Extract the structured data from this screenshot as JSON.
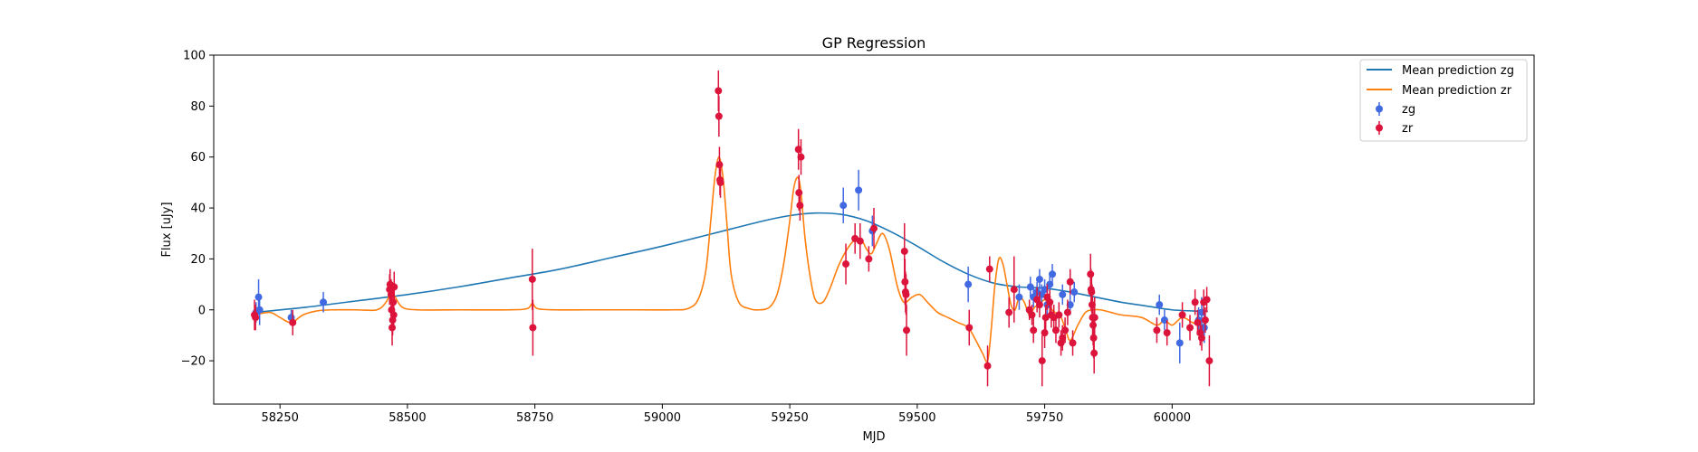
{
  "chart_data": {
    "type": "scatter",
    "title": "GP Regression",
    "xlabel": "MJD",
    "ylabel": "Flux [uJy]",
    "xlim": [
      58120,
      60710
    ],
    "ylim": [
      -37,
      100
    ],
    "xticks": [
      58250,
      58500,
      58750,
      59000,
      59250,
      59500,
      59750,
      60000
    ],
    "yticks": [
      -20,
      0,
      20,
      40,
      60,
      80,
      100
    ],
    "ytick_labels": [
      "−20",
      "0",
      "20",
      "40",
      "60",
      "80",
      "100"
    ],
    "legend_position": "top-right",
    "colors": {
      "zg": "#4169e1",
      "zr": "#dc143c",
      "mean_zg": "#1f77b4",
      "mean_zr": "#ff7f0e"
    },
    "series": [
      {
        "name": "zg",
        "kind": "errorbar",
        "color": "#4169e1",
        "points": [
          [
            58203,
            -1,
            4
          ],
          [
            58208,
            5,
            7
          ],
          [
            58210,
            0,
            6
          ],
          [
            58272,
            -3,
            3
          ],
          [
            58335,
            3,
            4
          ],
          [
            59355,
            41,
            7
          ],
          [
            59385,
            47,
            8
          ],
          [
            59412,
            31,
            6
          ],
          [
            59600,
            10,
            7
          ],
          [
            59700,
            5,
            5
          ],
          [
            59722,
            9,
            4
          ],
          [
            59728,
            5,
            4
          ],
          [
            59735,
            7,
            4
          ],
          [
            59740,
            12,
            4
          ],
          [
            59744,
            6,
            4
          ],
          [
            59750,
            8,
            4
          ],
          [
            59755,
            2,
            4
          ],
          [
            59760,
            10,
            4
          ],
          [
            59765,
            14,
            4
          ],
          [
            59785,
            6,
            4
          ],
          [
            59800,
            2,
            4
          ],
          [
            59808,
            7,
            4
          ],
          [
            59975,
            2,
            4
          ],
          [
            59985,
            -4,
            4
          ],
          [
            60015,
            -13,
            8
          ],
          [
            60052,
            -4,
            5
          ],
          [
            60058,
            -1,
            6
          ],
          [
            60063,
            -7,
            6
          ]
        ]
      },
      {
        "name": "zr",
        "kind": "errorbar",
        "color": "#dc143c",
        "points": [
          [
            58200,
            -2,
            6
          ],
          [
            58202,
            -3,
            5
          ],
          [
            58275,
            -5,
            5
          ],
          [
            58465,
            8,
            6
          ],
          [
            58466,
            10,
            6
          ],
          [
            58468,
            6,
            6
          ],
          [
            58469,
            0,
            6
          ],
          [
            58470,
            -7,
            7
          ],
          [
            58471,
            -4,
            6
          ],
          [
            58472,
            3,
            6
          ],
          [
            58473,
            -2,
            6
          ],
          [
            58474,
            9,
            6
          ],
          [
            58745,
            12,
            12
          ],
          [
            58746,
            -7,
            11
          ],
          [
            59110,
            86,
            8
          ],
          [
            59111,
            76,
            8
          ],
          [
            59112,
            57,
            7
          ],
          [
            59113,
            51,
            6
          ],
          [
            59114,
            50,
            6
          ],
          [
            59267,
            63,
            8
          ],
          [
            59268,
            46,
            7
          ],
          [
            59270,
            41,
            6
          ],
          [
            59272,
            60,
            7
          ],
          [
            59360,
            18,
            8
          ],
          [
            59378,
            28,
            6
          ],
          [
            59388,
            27,
            7
          ],
          [
            59405,
            20,
            5
          ],
          [
            59415,
            32,
            8
          ],
          [
            59475,
            23,
            11
          ],
          [
            59476,
            11,
            9
          ],
          [
            59477,
            7,
            8
          ],
          [
            59478,
            6,
            8
          ],
          [
            59479,
            -8,
            10
          ],
          [
            59602,
            -7,
            7
          ],
          [
            59638,
            -22,
            8
          ],
          [
            59642,
            16,
            5
          ],
          [
            59680,
            -1,
            6
          ],
          [
            59690,
            8,
            13
          ],
          [
            59720,
            0,
            4
          ],
          [
            59725,
            -2,
            4
          ],
          [
            59728,
            -8,
            5
          ],
          [
            59735,
            4,
            5
          ],
          [
            59740,
            2,
            5
          ],
          [
            59745,
            -20,
            10
          ],
          [
            59750,
            -9,
            6
          ],
          [
            59752,
            -3,
            5
          ],
          [
            59755,
            5,
            5
          ],
          [
            59760,
            3,
            5
          ],
          [
            59763,
            -2,
            5
          ],
          [
            59768,
            -3,
            5
          ],
          [
            59772,
            -8,
            5
          ],
          [
            59778,
            -2,
            5
          ],
          [
            59782,
            -13,
            5
          ],
          [
            59785,
            -11,
            5
          ],
          [
            59790,
            -8,
            5
          ],
          [
            59795,
            -1,
            5
          ],
          [
            59800,
            11,
            5
          ],
          [
            59805,
            -13,
            5
          ],
          [
            59840,
            14,
            8
          ],
          [
            59841,
            8,
            8
          ],
          [
            59842,
            7,
            8
          ],
          [
            59843,
            2,
            8
          ],
          [
            59844,
            -3,
            8
          ],
          [
            59845,
            -6,
            8
          ],
          [
            59846,
            -11,
            8
          ],
          [
            59847,
            -17,
            8
          ],
          [
            59848,
            -3,
            8
          ],
          [
            59970,
            -8,
            5
          ],
          [
            59990,
            -9,
            5
          ],
          [
            60020,
            -2,
            5
          ],
          [
            60035,
            -7,
            5
          ],
          [
            60045,
            3,
            5
          ],
          [
            60050,
            -5,
            5
          ],
          [
            60055,
            -9,
            5
          ],
          [
            60058,
            -11,
            5
          ],
          [
            60062,
            3,
            5
          ],
          [
            60065,
            -4,
            5
          ],
          [
            60068,
            4,
            5
          ],
          [
            60073,
            -20,
            10
          ]
        ]
      },
      {
        "name": "Mean prediction zg",
        "kind": "line",
        "color": "#1f77b4",
        "x": [
          58200,
          58300,
          58400,
          58500,
          58600,
          58700,
          58800,
          58900,
          59000,
          59100,
          59200,
          59250,
          59300,
          59350,
          59400,
          59450,
          59500,
          59550,
          59600,
          59650,
          59700,
          59750,
          59800,
          59850,
          59900,
          59950,
          60000,
          60050,
          60070
        ],
        "y": [
          -1,
          1,
          3.5,
          6,
          9,
          12.5,
          16,
          20.5,
          25,
          30,
          35,
          37,
          38,
          37.5,
          35,
          30.5,
          25,
          19,
          14,
          10.5,
          9,
          8.5,
          7,
          5,
          3,
          1.5,
          0,
          -0.5,
          -0.5
        ]
      },
      {
        "name": "Mean prediction zr",
        "kind": "line",
        "color": "#ff7f0e",
        "x": [
          58200,
          58230,
          58250,
          58272,
          58295,
          58320,
          58350,
          58400,
          58440,
          58458,
          58468,
          58476,
          58490,
          58520,
          58600,
          58700,
          58735,
          58745,
          58755,
          58790,
          58850,
          58950,
          59020,
          59050,
          59070,
          59085,
          59095,
          59103,
          59111,
          59119,
          59127,
          59135,
          59150,
          59170,
          59190,
          59210,
          59225,
          59238,
          59250,
          59258,
          59266,
          59272,
          59280,
          59290,
          59300,
          59315,
          59330,
          59345,
          59360,
          59375,
          59390,
          59400,
          59410,
          59420,
          59432,
          59445,
          59460,
          59470,
          59478,
          59490,
          59505,
          59520,
          59540,
          59560,
          59580,
          59600,
          59615,
          59628,
          59638,
          59645,
          59652,
          59660,
          59668,
          59676,
          59684,
          59692,
          59700,
          59710,
          59720,
          59730,
          59740,
          59750,
          59760,
          59770,
          59780,
          59790,
          59800,
          59815,
          59830,
          59845,
          59860,
          59880,
          59900,
          59940,
          59970,
          59985,
          60000,
          60020,
          60040,
          60055,
          60068
        ],
        "y": [
          -2,
          -1,
          -3,
          -5,
          -2,
          -0.5,
          0,
          0,
          0,
          3,
          7,
          5,
          1,
          0,
          0,
          0,
          0.5,
          2.5,
          0.5,
          0,
          0,
          0,
          0,
          0.5,
          4,
          15,
          35,
          52,
          60,
          52,
          33,
          14,
          3,
          0.5,
          0,
          1,
          6,
          18,
          35,
          48,
          52,
          46,
          28,
          13,
          4,
          3,
          9,
          17,
          23,
          27,
          27.5,
          24,
          22,
          26,
          30,
          24,
          10,
          4,
          3,
          5,
          6,
          3,
          -1,
          -3,
          -5,
          -7,
          -12,
          -17,
          -20,
          -8,
          9,
          20,
          18,
          10,
          2,
          0,
          5,
          3,
          -2,
          1,
          2,
          4,
          1,
          -1,
          -2,
          -7,
          -12,
          -6,
          -1,
          0,
          0,
          -1,
          -2,
          -3,
          -6,
          -4,
          -6,
          -3,
          -5,
          -6,
          -5
        ]
      }
    ]
  }
}
